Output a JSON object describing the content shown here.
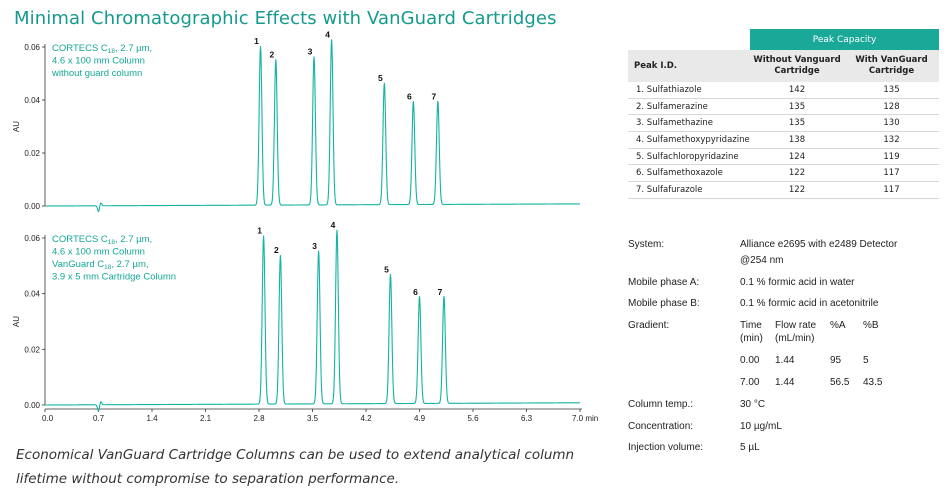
{
  "title": "Minimal Chromatographic Effects with VanGuard Cartridges",
  "chart_data": [
    {
      "type": "line",
      "title": "",
      "ylabel": "AU",
      "xlabel": "",
      "xlim": [
        0,
        7.0
      ],
      "ylim": [
        0,
        0.06
      ],
      "y_ticks": [
        "0.00",
        "0.02",
        "0.04",
        "0.06"
      ],
      "annotation": [
        "CORTECS C18, 2.7 µm,",
        "4.6 x 100 mm Column",
        "without guard column"
      ],
      "baseline_disturbance_x": 0.7,
      "peaks": [
        {
          "label": "1",
          "rt": 2.82,
          "height": 0.06
        },
        {
          "label": "2",
          "rt": 3.02,
          "height": 0.055
        },
        {
          "label": "3",
          "rt": 3.52,
          "height": 0.056
        },
        {
          "label": "4",
          "rt": 3.75,
          "height": 0.0625
        },
        {
          "label": "5",
          "rt": 4.44,
          "height": 0.046
        },
        {
          "label": "6",
          "rt": 4.82,
          "height": 0.039
        },
        {
          "label": "7",
          "rt": 5.14,
          "height": 0.039
        }
      ]
    },
    {
      "type": "line",
      "title": "",
      "ylabel": "AU",
      "xlabel": "",
      "xlim": [
        0,
        7.0
      ],
      "ylim": [
        0,
        0.06
      ],
      "x_ticks": [
        "0.0",
        "0.7",
        "1.4",
        "2.1",
        "2.8",
        "3.5",
        "4.2",
        "4.9",
        "5.6",
        "6.3",
        "7.0 min"
      ],
      "y_ticks": [
        "0.00",
        "0.02",
        "0.04",
        "0.06"
      ],
      "annotation": [
        "CORTECS C18, 2.7 µm,",
        "4.6 x 100 mm Column",
        "VanGuard C18, 2.7 µm,",
        "3.9 x 5 mm Cartridge Column"
      ],
      "baseline_disturbance_x": 0.7,
      "peaks": [
        {
          "label": "1",
          "rt": 2.86,
          "height": 0.0605
        },
        {
          "label": "2",
          "rt": 3.08,
          "height": 0.0535
        },
        {
          "label": "3",
          "rt": 3.58,
          "height": 0.055
        },
        {
          "label": "4",
          "rt": 3.82,
          "height": 0.0625
        },
        {
          "label": "5",
          "rt": 4.52,
          "height": 0.0465
        },
        {
          "label": "6",
          "rt": 4.9,
          "height": 0.0385
        },
        {
          "label": "7",
          "rt": 5.22,
          "height": 0.0385
        }
      ]
    }
  ],
  "peak_capacity_table": {
    "group_header": "Peak Capacity",
    "col_headers": [
      "Peak I.D.",
      "Without Vanguard Cartridge",
      "With VanGuard Cartridge"
    ],
    "rows": [
      [
        "1. Sulfathiazole",
        "142",
        "135"
      ],
      [
        "2. Sulfamerazine",
        "135",
        "128"
      ],
      [
        "3. Sulfamethazine",
        "135",
        "130"
      ],
      [
        "4. Sulfamethoxypyridazine",
        "138",
        "132"
      ],
      [
        "5. Sulfachloropyridazine",
        "124",
        "119"
      ],
      [
        "6. Sulfamethoxazole",
        "122",
        "117"
      ],
      [
        "7. Sulfafurazole",
        "122",
        "117"
      ]
    ]
  },
  "conditions": {
    "system_label": "System:",
    "system_value_1": "Alliance e2695 with e2489 Detector",
    "system_value_2": "@254 nm",
    "mpa_label": "Mobile phase A:",
    "mpa_value": "0.1 % formic acid in water",
    "mpb_label": "Mobile phase B:",
    "mpb_value": "0.1 % formic acid in acetonitrile",
    "gradient_label": "Gradient:",
    "gradient_headers": [
      "Time",
      "Flow rate",
      "%A",
      "%B"
    ],
    "gradient_units": [
      "(min)",
      "(mL/min)"
    ],
    "gradient_rows": [
      [
        "0.00",
        "1.44",
        "95",
        "5"
      ],
      [
        "7.00",
        "1.44",
        "56.5",
        "43.5"
      ]
    ],
    "temp_label": "Column temp.:",
    "temp_value": "30 °C",
    "conc_label": "Concentration:",
    "conc_value": "10 µg/mL",
    "inj_label": "Injection volume:",
    "inj_value": "5 µL"
  },
  "caption_line1": "Economical VanGuard Cartridge Columns can be used to extend analytical column",
  "caption_line2": "lifetime without compromise to separation performance."
}
